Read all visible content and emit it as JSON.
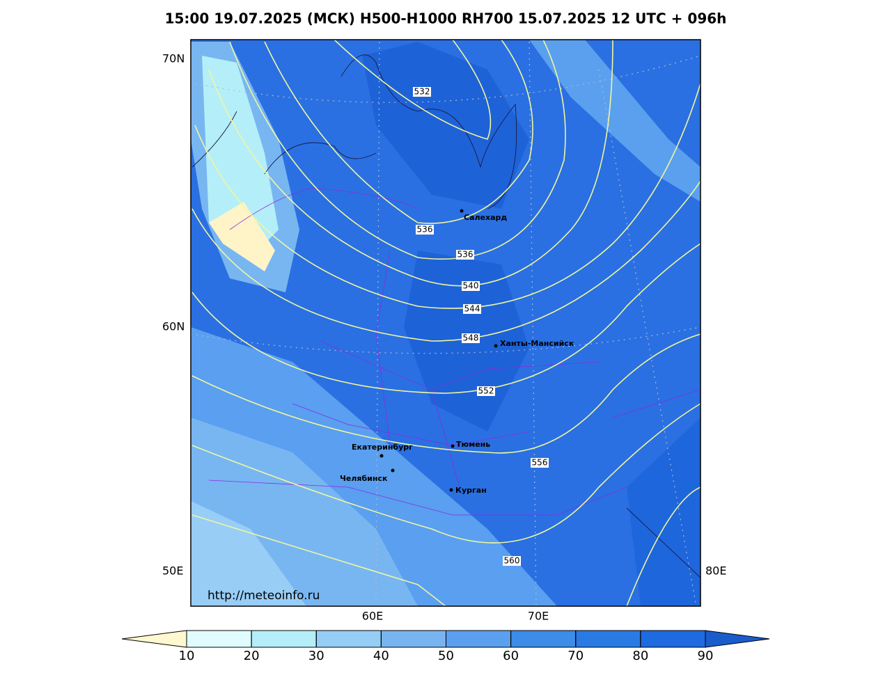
{
  "title": "15:00 19.07.2025 (МСК) H500-H1000 RH700 15.07.2025 12 UTC + 096h",
  "map": {
    "lat_labels": [
      "70N",
      "60N",
      "50E"
    ],
    "lon_labels": [
      "60E",
      "70E",
      "80E"
    ],
    "contour_labels": [
      "532",
      "536",
      "536",
      "540",
      "544",
      "548",
      "552",
      "556",
      "560"
    ],
    "cities": [
      "Салехард",
      "Ханты-Мансийск",
      "Екатеринбург",
      "Тюмень",
      "Челябинск",
      "Курган"
    ],
    "url": "http://meteoinfo.ru"
  },
  "colorbar": {
    "ticks": [
      10,
      20,
      30,
      40,
      50,
      60,
      70,
      80,
      90
    ],
    "colors": [
      "#fff8d0",
      "#e0fcff",
      "#b4eef8",
      "#96cdf5",
      "#78b4f0",
      "#5aa0ee",
      "#3c8ce8",
      "#2a7ae4",
      "#1e6ae0",
      "#1a5ccc"
    ]
  }
}
